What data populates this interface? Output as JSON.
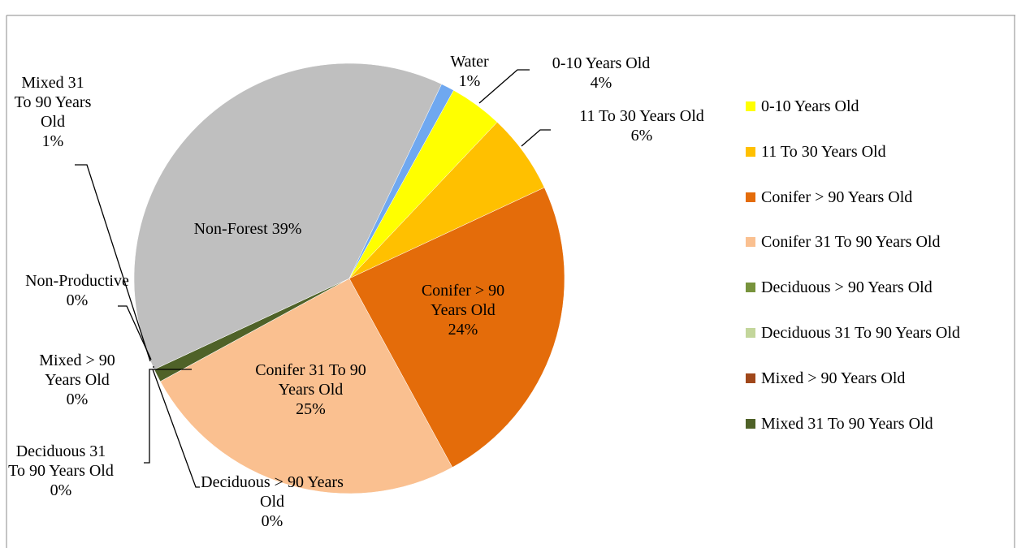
{
  "chart_data": {
    "type": "pie",
    "categories": [
      "0-10 Years Old",
      "11 To 30 Years Old",
      "Conifer > 90 Years Old",
      "Conifer 31 To 90 Years Old",
      "Deciduous > 90 Years Old",
      "Deciduous 31 To 90 Years Old",
      "Mixed > 90 Years Old",
      "Mixed 31 To 90 Years Old",
      "Non-Productive",
      "Non-Forest",
      "Water"
    ],
    "values": [
      4,
      6,
      24,
      25,
      0,
      0,
      0,
      1,
      0,
      39,
      1
    ],
    "value_labels": [
      "4%",
      "6%",
      "24%",
      "25%",
      "0%",
      "0%",
      "0%",
      "1%",
      "0%",
      "39%",
      "1%"
    ],
    "colors": [
      "#ffff00",
      "#ffc000",
      "#e46c0a",
      "#fac090",
      "#77933c",
      "#c3d69b",
      "#a0471a",
      "#4f6228",
      "#b9a37a",
      "#bfbfbf",
      "#6fa8f0"
    ],
    "legend": {
      "position": "right",
      "max_items": 8
    }
  }
}
